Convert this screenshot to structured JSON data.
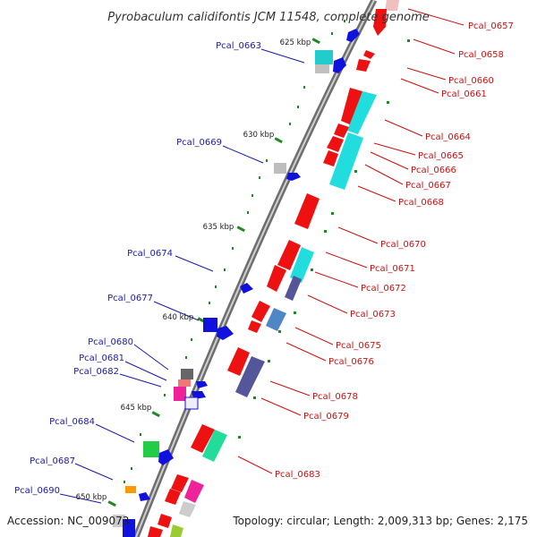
{
  "title": "Pyrobaculum calidifontis JCM 11548, complete genome",
  "footer": {
    "accession": "Accession: NC_009073",
    "topology": "Topology: circular; Length: 2,009,313 bp; Genes: 2,175"
  },
  "kbp_marks": [
    "625 kbp",
    "630 kbp",
    "635 kbp",
    "640 kbp",
    "645 kbp",
    "650 kbp"
  ],
  "left_labels": [
    "Pcal_0663",
    "Pcal_0669",
    "Pcal_0674",
    "Pcal_0677",
    "Pcal_0680",
    "Pcal_0681",
    "Pcal_0682",
    "Pcal_0684",
    "Pcal_0687",
    "Pcal_0690"
  ],
  "right_labels": [
    "Pcal_0657",
    "Pcal_0658",
    "Pcal_0660",
    "Pcal_0661",
    "Pcal_0664",
    "Pcal_0665",
    "Pcal_0666",
    "Pcal_0667",
    "Pcal_0668",
    "Pcal_0670",
    "Pcal_0671",
    "Pcal_0672",
    "Pcal_0673",
    "Pcal_0675",
    "Pcal_0676",
    "Pcal_0678",
    "Pcal_0679",
    "Pcal_0683"
  ],
  "colors": {
    "label_forward": "#1a1aa8",
    "label_reverse": "#cc1111",
    "backbone": "#8a8a8a",
    "tick": "#1f8a1f",
    "gene_red": "#ee1111",
    "gene_blue": "#1111dd",
    "gene_cyan": "#22dddd",
    "gene_purple": "#55559a",
    "gene_green": "#22cc44",
    "gene_mint": "#22dd99",
    "gene_magenta": "#ee2299",
    "gene_grey": "#b8b8b8",
    "gene_orange": "#ff9900",
    "gene_steel": "#4f86c6"
  }
}
